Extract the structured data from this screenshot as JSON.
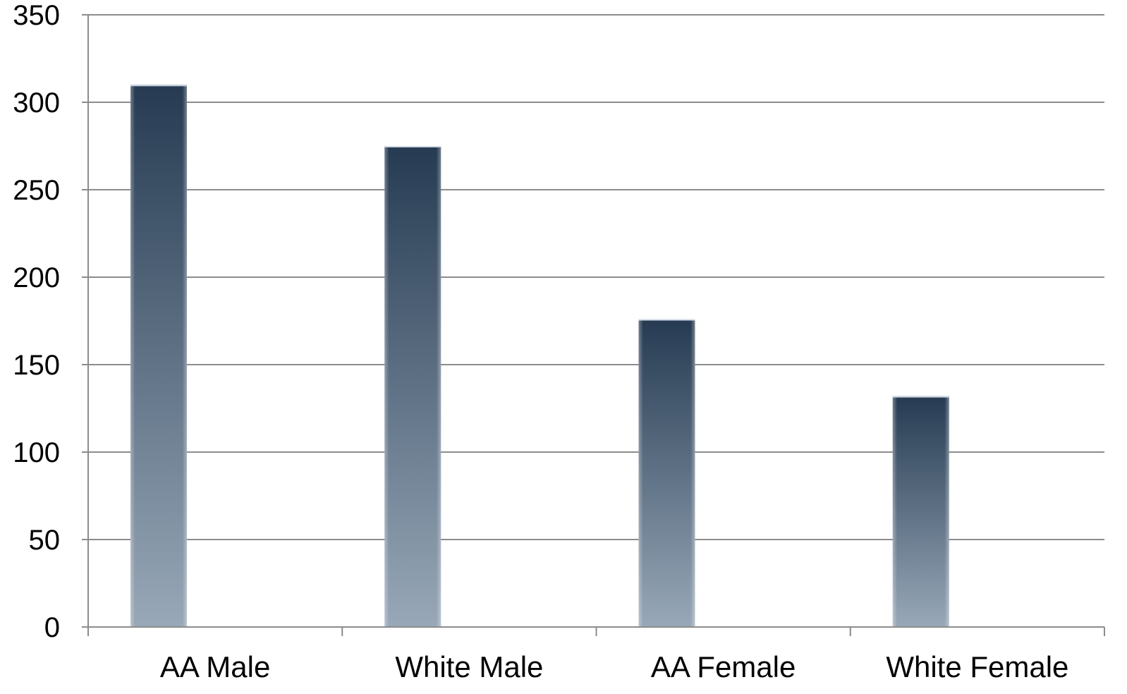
{
  "chart_data": {
    "type": "bar",
    "categories": [
      "AA Male",
      "White Male",
      "AA Female",
      "White Female"
    ],
    "values": [
      310,
      275,
      176,
      132
    ],
    "ylim": [
      0,
      350
    ],
    "yticks": [
      0,
      50,
      100,
      150,
      200,
      250,
      300,
      350
    ],
    "ytick_labels": [
      "0",
      "50",
      "100",
      "150",
      "200",
      "250",
      "300",
      "350"
    ],
    "grid": true,
    "title": "",
    "xlabel": "",
    "ylabel": "",
    "colors": {
      "bar_top": "#263b52",
      "bar_bottom": "#98a8b8",
      "grid": "#8c8c8c",
      "axis": "#8c8c8c",
      "text": "#000000"
    }
  }
}
